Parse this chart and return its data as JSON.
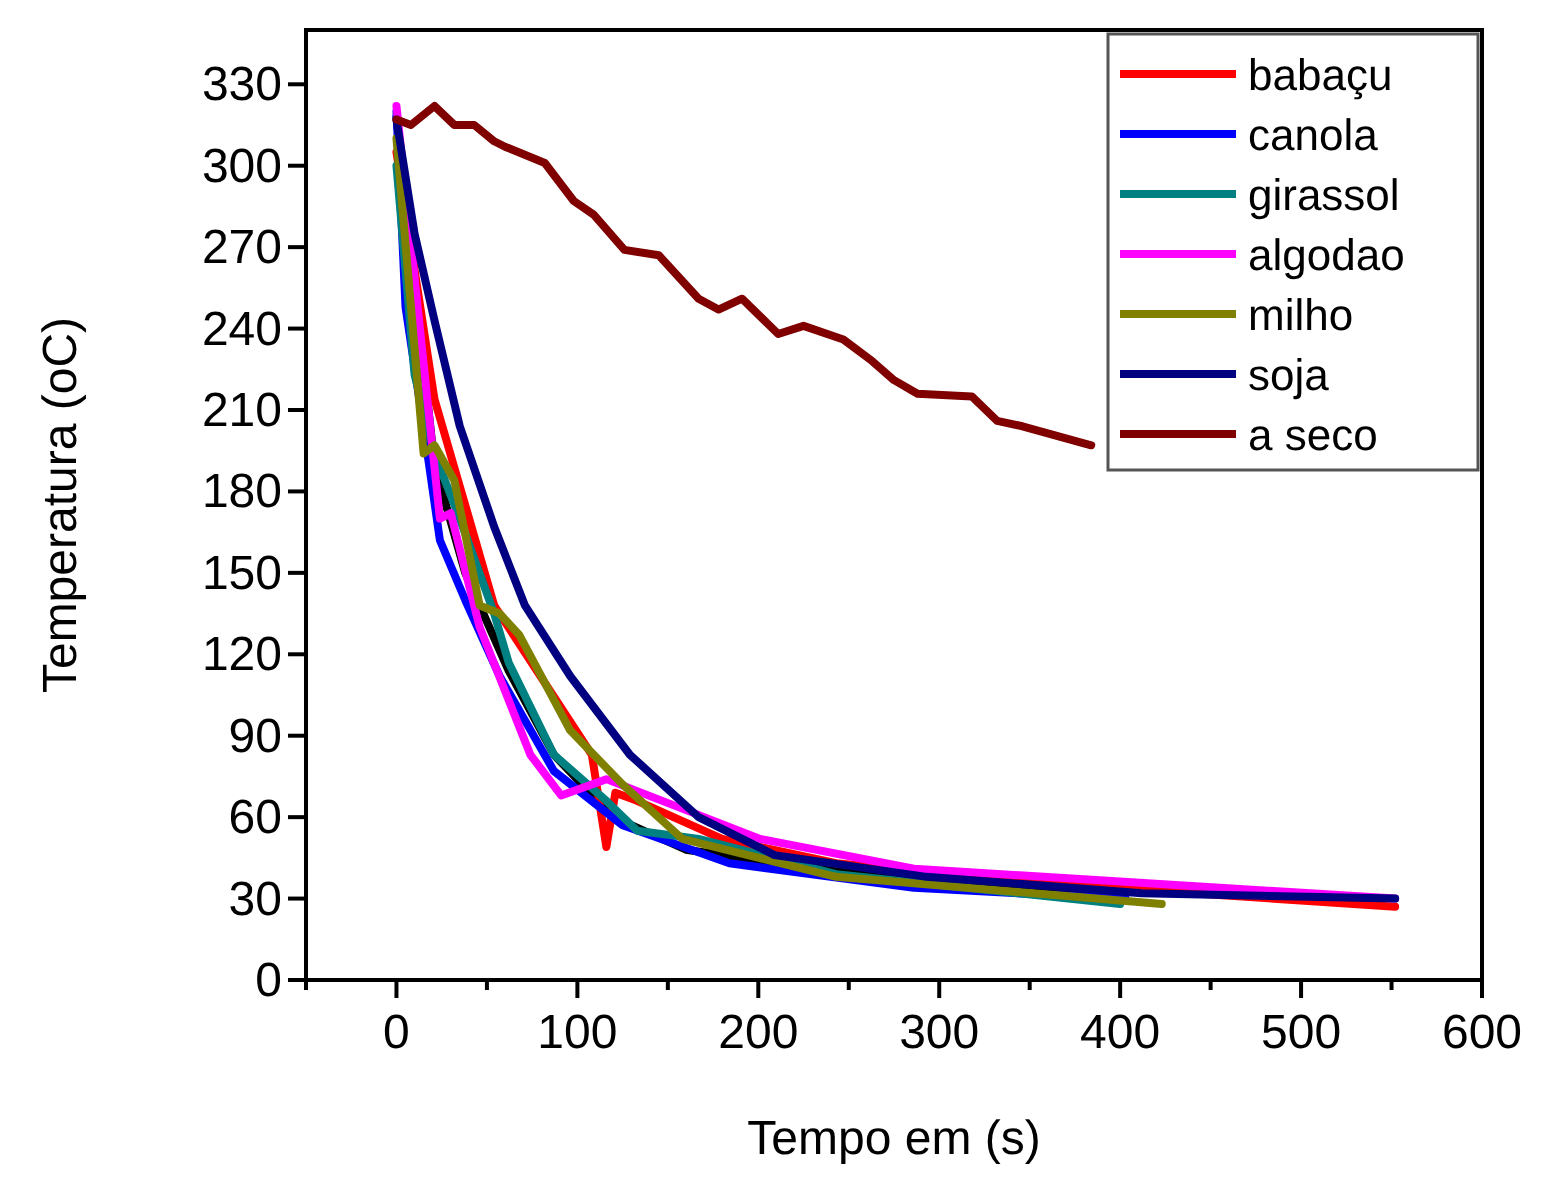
{
  "chart_data": {
    "type": "line",
    "xlabel": "Tempo em (s)",
    "ylabel": "Temperatura (oC)",
    "xlim": [
      -50,
      600
    ],
    "ylim": [
      0,
      350
    ],
    "xticks": [
      {
        "value": -50,
        "label": null
      },
      0,
      {
        "value": 50,
        "label": null
      },
      100,
      {
        "value": 150,
        "label": null
      },
      200,
      {
        "value": 250,
        "label": null
      },
      300,
      {
        "value": 350,
        "label": null
      },
      400,
      {
        "value": 450,
        "label": null
      },
      500,
      {
        "value": 550,
        "label": null
      },
      600
    ],
    "yticks": [
      0,
      30,
      60,
      90,
      120,
      150,
      180,
      210,
      240,
      270,
      300,
      330
    ],
    "grid": false,
    "legend": "top right",
    "line_style": "solid",
    "marker": "none",
    "series": [
      {
        "color": "#000000",
        "x": [
          0,
          21,
          38,
          62,
          87,
          120,
          160,
          243,
          327,
          400
        ],
        "values": [
          318,
          190,
          150,
          114,
          83,
          60,
          48,
          40,
          34,
          31
        ]
      },
      {
        "name": "babaçu",
        "color": "#ff0000",
        "x": [
          0,
          21,
          38,
          54,
          108,
          116,
          121,
          133,
          180,
          243,
          370,
          552
        ],
        "values": [
          305,
          214,
          175,
          138,
          83,
          49,
          69,
          66,
          52,
          43,
          35,
          27
        ]
      },
      {
        "name": "canola",
        "color": "#0000ff",
        "x": [
          0,
          5,
          18,
          24,
          38,
          57,
          87,
          125,
          184,
          286,
          370,
          403
        ],
        "values": [
          320,
          248,
          190,
          162,
          140,
          112,
          77,
          57,
          43,
          34,
          31,
          30
        ]
      },
      {
        "name": "girassol",
        "color": "#008080",
        "x": [
          0,
          10,
          21,
          35,
          54,
          62,
          87,
          116,
          133,
          167,
          243,
          400
        ],
        "values": [
          300,
          223,
          194,
          170,
          135,
          117,
          83,
          66,
          55,
          52,
          39,
          28
        ]
      },
      {
        "name": "algodao",
        "color": "#ff00ff",
        "x": [
          0,
          24,
          30,
          46,
          74,
          91,
          116,
          201,
          286,
          552
        ],
        "values": [
          322,
          170,
          172,
          130,
          83,
          68,
          74,
          52,
          41,
          30
        ]
      },
      {
        "name": "milho",
        "color": "#808000",
        "x": [
          0,
          15,
          21,
          32,
          46,
          57,
          68,
          96,
          125,
          158,
          243,
          423
        ],
        "values": [
          310,
          194,
          197,
          184,
          138,
          135,
          127,
          92,
          72,
          52,
          38,
          28
        ]
      },
      {
        "name": "soja",
        "color": "#000080",
        "x": [
          0,
          10,
          21,
          35,
          54,
          71,
          96,
          129,
          167,
          209,
          293,
          412,
          552
        ],
        "values": [
          317,
          275,
          243,
          204,
          167,
          138,
          112,
          83,
          60,
          46,
          38,
          32,
          30
        ]
      },
      {
        "name": "a seco",
        "color": "#800000",
        "x": [
          0,
          8,
          21,
          32,
          43,
          54,
          60,
          82,
          98,
          109,
          126,
          145,
          167,
          178,
          191,
          211,
          225,
          247,
          263,
          275,
          288,
          318,
          332,
          346,
          384
        ],
        "values": [
          317,
          315,
          322,
          315,
          315,
          309,
          307,
          301,
          287,
          282,
          269,
          267,
          251,
          247,
          251,
          238,
          241,
          236,
          228,
          221,
          216,
          215,
          206,
          204,
          197
        ]
      }
    ]
  }
}
